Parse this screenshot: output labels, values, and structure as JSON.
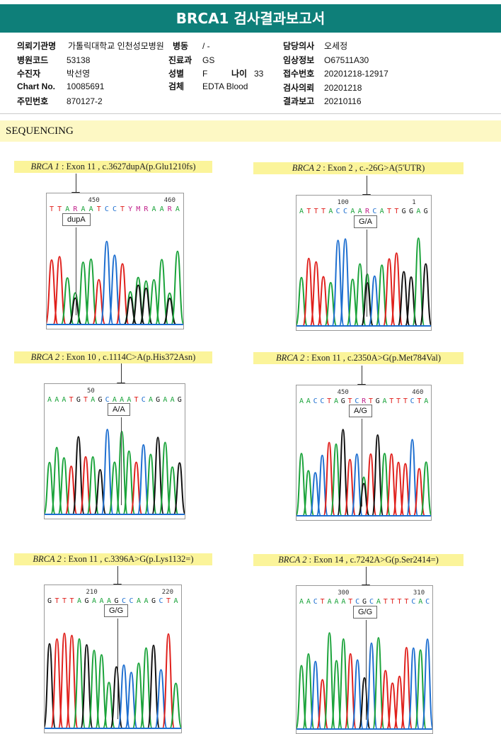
{
  "title": "BRCA1 검사결과보고서",
  "info": {
    "institution_label": "의뢰기관명",
    "institution": "가톨릭대학교 인천성모병원",
    "ward_label": "병동",
    "ward": "/ -",
    "doctor_label": "담당의사",
    "doctor": "오세정",
    "hospital_code_label": "병원코드",
    "hospital_code": "53138",
    "department_label": "진료과",
    "department": "GS",
    "clinical_label": "임상정보",
    "clinical": "O67511A30",
    "patient_label": "수진자",
    "patient": "박선영",
    "sex_label": "성별",
    "sex": "F",
    "age_label": "나이",
    "age": "33",
    "receipt_label": "접수번호",
    "receipt": "20201218-12917",
    "chart_label": "Chart No.",
    "chart": "10085691",
    "specimen_label": "검체",
    "specimen": "EDTA Blood",
    "request_label": "검사의뢰",
    "request": "20201218",
    "id_label": "주민번호",
    "id": "870127-2",
    "report_label": "결과보고",
    "report": "20210116"
  },
  "section": "SEQUENCING",
  "panels": [
    {
      "gene": "BRCA 1",
      "desc": " : Exon 11 , c.3627dupA(p.Glu1210fs)",
      "seq": "TTARAATCCTYMRAARA",
      "pos1": "450",
      "pos2": "460",
      "call": "dupA"
    },
    {
      "gene": "BRCA 2",
      "desc": " : Exon 2 , c.-26G>A(5'UTR)",
      "seq": "ATTTACCAARCATTGGAG",
      "pos1": "100",
      "pos2": "1",
      "call": "G/A"
    },
    {
      "gene": "BRCA 2",
      "desc": " : Exon 10 , c.1114C>A(p.His372Asn)",
      "seq": "AAATGTAGCAAATCAGAAG",
      "pos1": "50",
      "pos2": "",
      "call": "A/A"
    },
    {
      "gene": "BRCA 2",
      "desc": " : Exon 11 , c.2350A>G(p.Met784Val)",
      "seq": "AACCTAGTCRTGATTTCTA",
      "pos1": "450",
      "pos2": "460",
      "call": "A/G"
    },
    {
      "gene": "BRCA 2",
      "desc": " : Exon 11 , c.3396A>G(p.Lys1132=)",
      "seq": "GTTTAGAAAGCCAAGCTA",
      "pos1": "210",
      "pos2": "220",
      "call": "G/G"
    },
    {
      "gene": "BRCA 2",
      "desc": " : Exon 14 , c.7242A>G(p.Ser2414=)",
      "seq": "AACTAAATCGCATTTTCAC",
      "pos1": "300",
      "pos2": "310",
      "call": "G/G"
    }
  ],
  "colors": {
    "A": "#1aa33a",
    "C": "#1e6fd0",
    "G": "#111111",
    "T": "#e0201c",
    "header": "#0e7f79"
  }
}
